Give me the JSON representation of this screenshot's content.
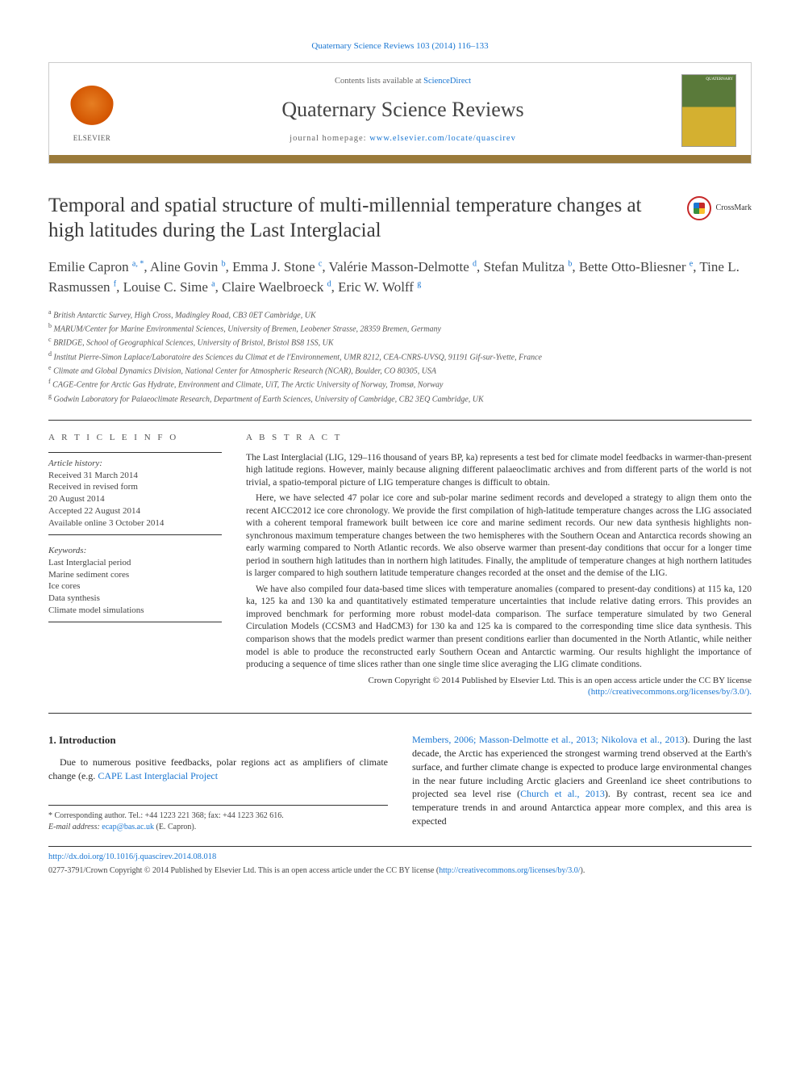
{
  "journal_ref": "Quaternary Science Reviews 103 (2014) 116–133",
  "header": {
    "elsevier_label": "ELSEVIER",
    "contents_prefix": "Contents lists available at ",
    "contents_link": "ScienceDirect",
    "journal_name": "Quaternary Science Reviews",
    "homepage_prefix": "journal homepage: ",
    "homepage_url": "www.elsevier.com/locate/quascirev",
    "cover_label": "QUATERNARY"
  },
  "crossmark": "CrossMark",
  "title": "Temporal and spatial structure of multi-millennial temperature changes at high latitudes during the Last Interglacial",
  "authors": [
    {
      "name": "Emilie Capron",
      "affs": "a, *"
    },
    {
      "name": "Aline Govin",
      "affs": "b"
    },
    {
      "name": "Emma J. Stone",
      "affs": "c"
    },
    {
      "name": "Valérie Masson-Delmotte",
      "affs": "d"
    },
    {
      "name": "Stefan Mulitza",
      "affs": "b"
    },
    {
      "name": "Bette Otto-Bliesner",
      "affs": "e"
    },
    {
      "name": "Tine L. Rasmussen",
      "affs": "f"
    },
    {
      "name": "Louise C. Sime",
      "affs": "a"
    },
    {
      "name": "Claire Waelbroeck",
      "affs": "d"
    },
    {
      "name": "Eric W. Wolff",
      "affs": "g"
    }
  ],
  "affiliations": [
    {
      "sup": "a",
      "text": "British Antarctic Survey, High Cross, Madingley Road, CB3 0ET Cambridge, UK"
    },
    {
      "sup": "b",
      "text": "MARUM/Center for Marine Environmental Sciences, University of Bremen, Leobener Strasse, 28359 Bremen, Germany"
    },
    {
      "sup": "c",
      "text": "BRIDGE, School of Geographical Sciences, University of Bristol, Bristol BS8 1SS, UK"
    },
    {
      "sup": "d",
      "text": "Institut Pierre-Simon Laplace/Laboratoire des Sciences du Climat et de l'Environnement, UMR 8212, CEA-CNRS-UVSQ, 91191 Gif-sur-Yvette, France"
    },
    {
      "sup": "e",
      "text": "Climate and Global Dynamics Division, National Center for Atmospheric Research (NCAR), Boulder, CO 80305, USA"
    },
    {
      "sup": "f",
      "text": "CAGE-Centre for Arctic Gas Hydrate, Environment and Climate, UiT, The Arctic University of Norway, Tromsø, Norway"
    },
    {
      "sup": "g",
      "text": "Godwin Laboratory for Palaeoclimate Research, Department of Earth Sciences, University of Cambridge, CB2 3EQ Cambridge, UK"
    }
  ],
  "article_info": {
    "label": "A R T I C L E  I N F O",
    "history_label": "Article history:",
    "history": [
      "Received 31 March 2014",
      "Received in revised form",
      "20 August 2014",
      "Accepted 22 August 2014",
      "Available online 3 October 2014"
    ],
    "keywords_label": "Keywords:",
    "keywords": [
      "Last Interglacial period",
      "Marine sediment cores",
      "Ice cores",
      "Data synthesis",
      "Climate model simulations"
    ]
  },
  "abstract": {
    "label": "A B S T R A C T",
    "paragraphs": [
      "The Last Interglacial (LIG, 129–116 thousand of years BP, ka) represents a test bed for climate model feedbacks in warmer-than-present high latitude regions. However, mainly because aligning different palaeoclimatic archives and from different parts of the world is not trivial, a spatio-temporal picture of LIG temperature changes is difficult to obtain.",
      "Here, we have selected 47 polar ice core and sub-polar marine sediment records and developed a strategy to align them onto the recent AICC2012 ice core chronology. We provide the first compilation of high-latitude temperature changes across the LIG associated with a coherent temporal framework built between ice core and marine sediment records. Our new data synthesis highlights non-synchronous maximum temperature changes between the two hemispheres with the Southern Ocean and Antarctica records showing an early warming compared to North Atlantic records. We also observe warmer than present-day conditions that occur for a longer time period in southern high latitudes than in northern high latitudes. Finally, the amplitude of temperature changes at high northern latitudes is larger compared to high southern latitude temperature changes recorded at the onset and the demise of the LIG.",
      "We have also compiled four data-based time slices with temperature anomalies (compared to present-day conditions) at 115 ka, 120 ka, 125 ka and 130 ka and quantitatively estimated temperature uncertainties that include relative dating errors. This provides an improved benchmark for performing more robust model-data comparison. The surface temperature simulated by two General Circulation Models (CCSM3 and HadCM3) for 130 ka and 125 ka is compared to the corresponding time slice data synthesis. This comparison shows that the models predict warmer than present conditions earlier than documented in the North Atlantic, while neither model is able to produce the reconstructed early Southern Ocean and Antarctic warming. Our results highlight the importance of producing a sequence of time slices rather than one single time slice averaging the LIG climate conditions."
    ],
    "copyright": "Crown Copyright © 2014 Published by Elsevier Ltd. This is an open access article under the CC BY license",
    "license_url": "(http://creativecommons.org/licenses/by/3.0/)."
  },
  "body": {
    "section_heading": "1.  Introduction",
    "left_para_prefix": "Due to numerous positive feedbacks, polar regions act as amplifiers of climate change (e.g. ",
    "left_para_link": "CAPE Last Interglacial Project",
    "right_para_link": "Members, 2006; Masson-Delmotte et al., 2013; Nikolova et al., 2013",
    "right_para_mid1": "). During the last decade, the Arctic has experienced the strongest warming trend observed at the Earth's surface, and further climate change is expected to produce large environmental changes in the near future including Arctic glaciers and Greenland ice sheet contributions to projected sea level rise (",
    "right_para_link2": "Church et al., 2013",
    "right_para_mid2": "). By contrast, recent sea ice and temperature trends in and around Antarctica appear more complex, and this area is expected"
  },
  "corresponding": {
    "label": "* Corresponding author. Tel.: +44 1223 221 368; fax: +44 1223 362 616.",
    "email_label": "E-mail address: ",
    "email": "ecap@bas.ac.uk",
    "email_suffix": " (E. Capron)."
  },
  "footer": {
    "doi": "http://dx.doi.org/10.1016/j.quascirev.2014.08.018",
    "issn_line": "0277-3791/Crown Copyright © 2014 Published by Elsevier Ltd. This is an open access article under the CC BY license (",
    "license_url": "http://creativecommons.org/licenses/by/3.0/",
    "issn_suffix": ")."
  },
  "colors": {
    "link": "#1976d2",
    "accent_bar": "#9a7a3a",
    "text": "#2a2a2a"
  }
}
